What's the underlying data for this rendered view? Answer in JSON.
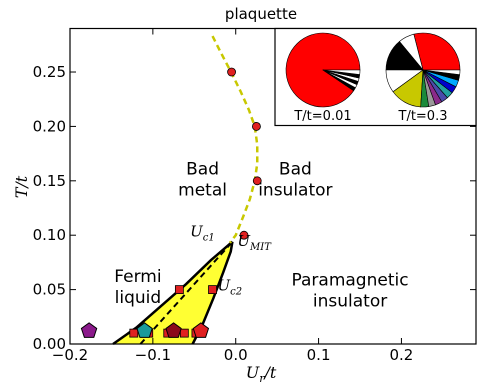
{
  "chart_data": {
    "type": "scatter",
    "title": "plaquette",
    "xlabel": "U_r/t",
    "ylabel": "T/t",
    "xlim": [
      -0.2,
      0.29
    ],
    "ylim": [
      0.0,
      0.29
    ],
    "x_ticks": [
      "−0.2",
      "−0.1",
      "0.0",
      "0.1",
      "0.2"
    ],
    "x_tick_values": [
      -0.2,
      -0.1,
      0.0,
      0.1,
      0.2
    ],
    "y_ticks": [
      "0.00",
      "0.05",
      "0.10",
      "0.15",
      "0.20",
      "0.25"
    ],
    "y_tick_values": [
      0.0,
      0.05,
      0.1,
      0.15,
      0.2,
      0.25
    ],
    "grid": false,
    "region_labels": [
      {
        "text": [
          "Bad",
          "metal"
        ],
        "x": -0.04,
        "y": 0.156
      },
      {
        "text": [
          "Bad",
          "insulator"
        ],
        "x": 0.072,
        "y": 0.156
      },
      {
        "text": [
          "Fermi",
          "liquid"
        ],
        "x": -0.118,
        "y": 0.057
      },
      {
        "text": [
          "Paramagnetic",
          "insulator"
        ],
        "x": 0.138,
        "y": 0.054
      }
    ],
    "point_labels": [
      {
        "text": "U",
        "sub": "c1",
        "x": -0.055,
        "y": 0.099
      },
      {
        "text": "U",
        "sub": "MIT",
        "x": 0.002,
        "y": 0.09
      },
      {
        "text": "U",
        "sub": "c2",
        "x": -0.022,
        "y": 0.049
      }
    ],
    "widom_line": {
      "color": "#c8c800",
      "x": [
        -0.028,
        -0.016,
        -0.005,
        0.006,
        0.016,
        0.023,
        0.026,
        0.026,
        0.023,
        0.017,
        0.009,
        0.0,
        -0.007
      ],
      "y": [
        0.283,
        0.265,
        0.249,
        0.232,
        0.215,
        0.2,
        0.183,
        0.166,
        0.15,
        0.133,
        0.117,
        0.1,
        0.093
      ]
    },
    "widom_points": {
      "color": "#e02020",
      "x": [
        -0.005,
        0.025,
        0.026,
        0.01
      ],
      "y": [
        0.25,
        0.2,
        0.15,
        0.1
      ]
    },
    "coexistence_region": {
      "fill": "#ffff33",
      "upper_boundary": {
        "x": [
          -0.148,
          -0.12,
          -0.09,
          -0.06,
          -0.03,
          -0.004
        ],
        "y": [
          0.0,
          0.015,
          0.035,
          0.055,
          0.077,
          0.094
        ]
      },
      "lower_boundary": {
        "x": [
          -0.052,
          -0.04,
          -0.027,
          -0.015,
          -0.006,
          -0.004
        ],
        "y": [
          0.0,
          0.018,
          0.042,
          0.066,
          0.085,
          0.094
        ]
      },
      "first_order_line": {
        "x": [
          -0.115,
          -0.004
        ],
        "y": [
          0.0,
          0.094
        ]
      }
    },
    "square_points": {
      "color": "#e02020",
      "x": [
        -0.123,
        -0.105,
        -0.082,
        -0.062,
        -0.048,
        -0.068,
        -0.028
      ],
      "y": [
        0.01,
        0.01,
        0.01,
        0.01,
        0.01,
        0.05,
        0.05
      ]
    },
    "pentagons": [
      {
        "x": -0.177,
        "y": 0.012,
        "color": "#8b1a8b"
      },
      {
        "x": -0.11,
        "y": 0.012,
        "color": "#1a9a9a"
      },
      {
        "x": -0.075,
        "y": 0.012,
        "color": "#8b0a1a"
      },
      {
        "x": -0.042,
        "y": 0.012,
        "color": "#e02020"
      }
    ],
    "inset": {
      "pies": [
        {
          "label": "T/t=0.01",
          "slices": [
            {
              "value": 91.0,
              "color": "#ff0000"
            },
            {
              "value": 1.5,
              "color": "#000000"
            },
            {
              "value": 1.5,
              "color": "#ffffff"
            },
            {
              "value": 1.5,
              "color": "#000000"
            },
            {
              "value": 1.5,
              "color": "#ffffff"
            },
            {
              "value": 1.5,
              "color": "#000000"
            },
            {
              "value": 2.0,
              "color": "#ffffff"
            }
          ]
        },
        {
          "label": "T/t=0.3",
          "slices": [
            {
              "value": 29.0,
              "color": "#ff0000"
            },
            {
              "value": 7.0,
              "color": "#ffffff"
            },
            {
              "value": 14.0,
              "color": "#000000"
            },
            {
              "value": 10.0,
              "color": "#ffffff"
            },
            {
              "value": 14.0,
              "color": "#c8c800"
            },
            {
              "value": 3.5,
              "color": "#1a8a3a"
            },
            {
              "value": 3.0,
              "color": "#9a9a9a"
            },
            {
              "value": 3.0,
              "color": "#8a2a8a"
            },
            {
              "value": 3.0,
              "color": "#4a4aaa"
            },
            {
              "value": 3.0,
              "color": "#22a0a0"
            },
            {
              "value": 3.0,
              "color": "#0000cc"
            },
            {
              "value": 3.0,
              "color": "#00aaff"
            },
            {
              "value": 2.5,
              "color": "#000000"
            },
            {
              "value": 2.0,
              "color": "#ffffff"
            }
          ]
        }
      ]
    }
  }
}
